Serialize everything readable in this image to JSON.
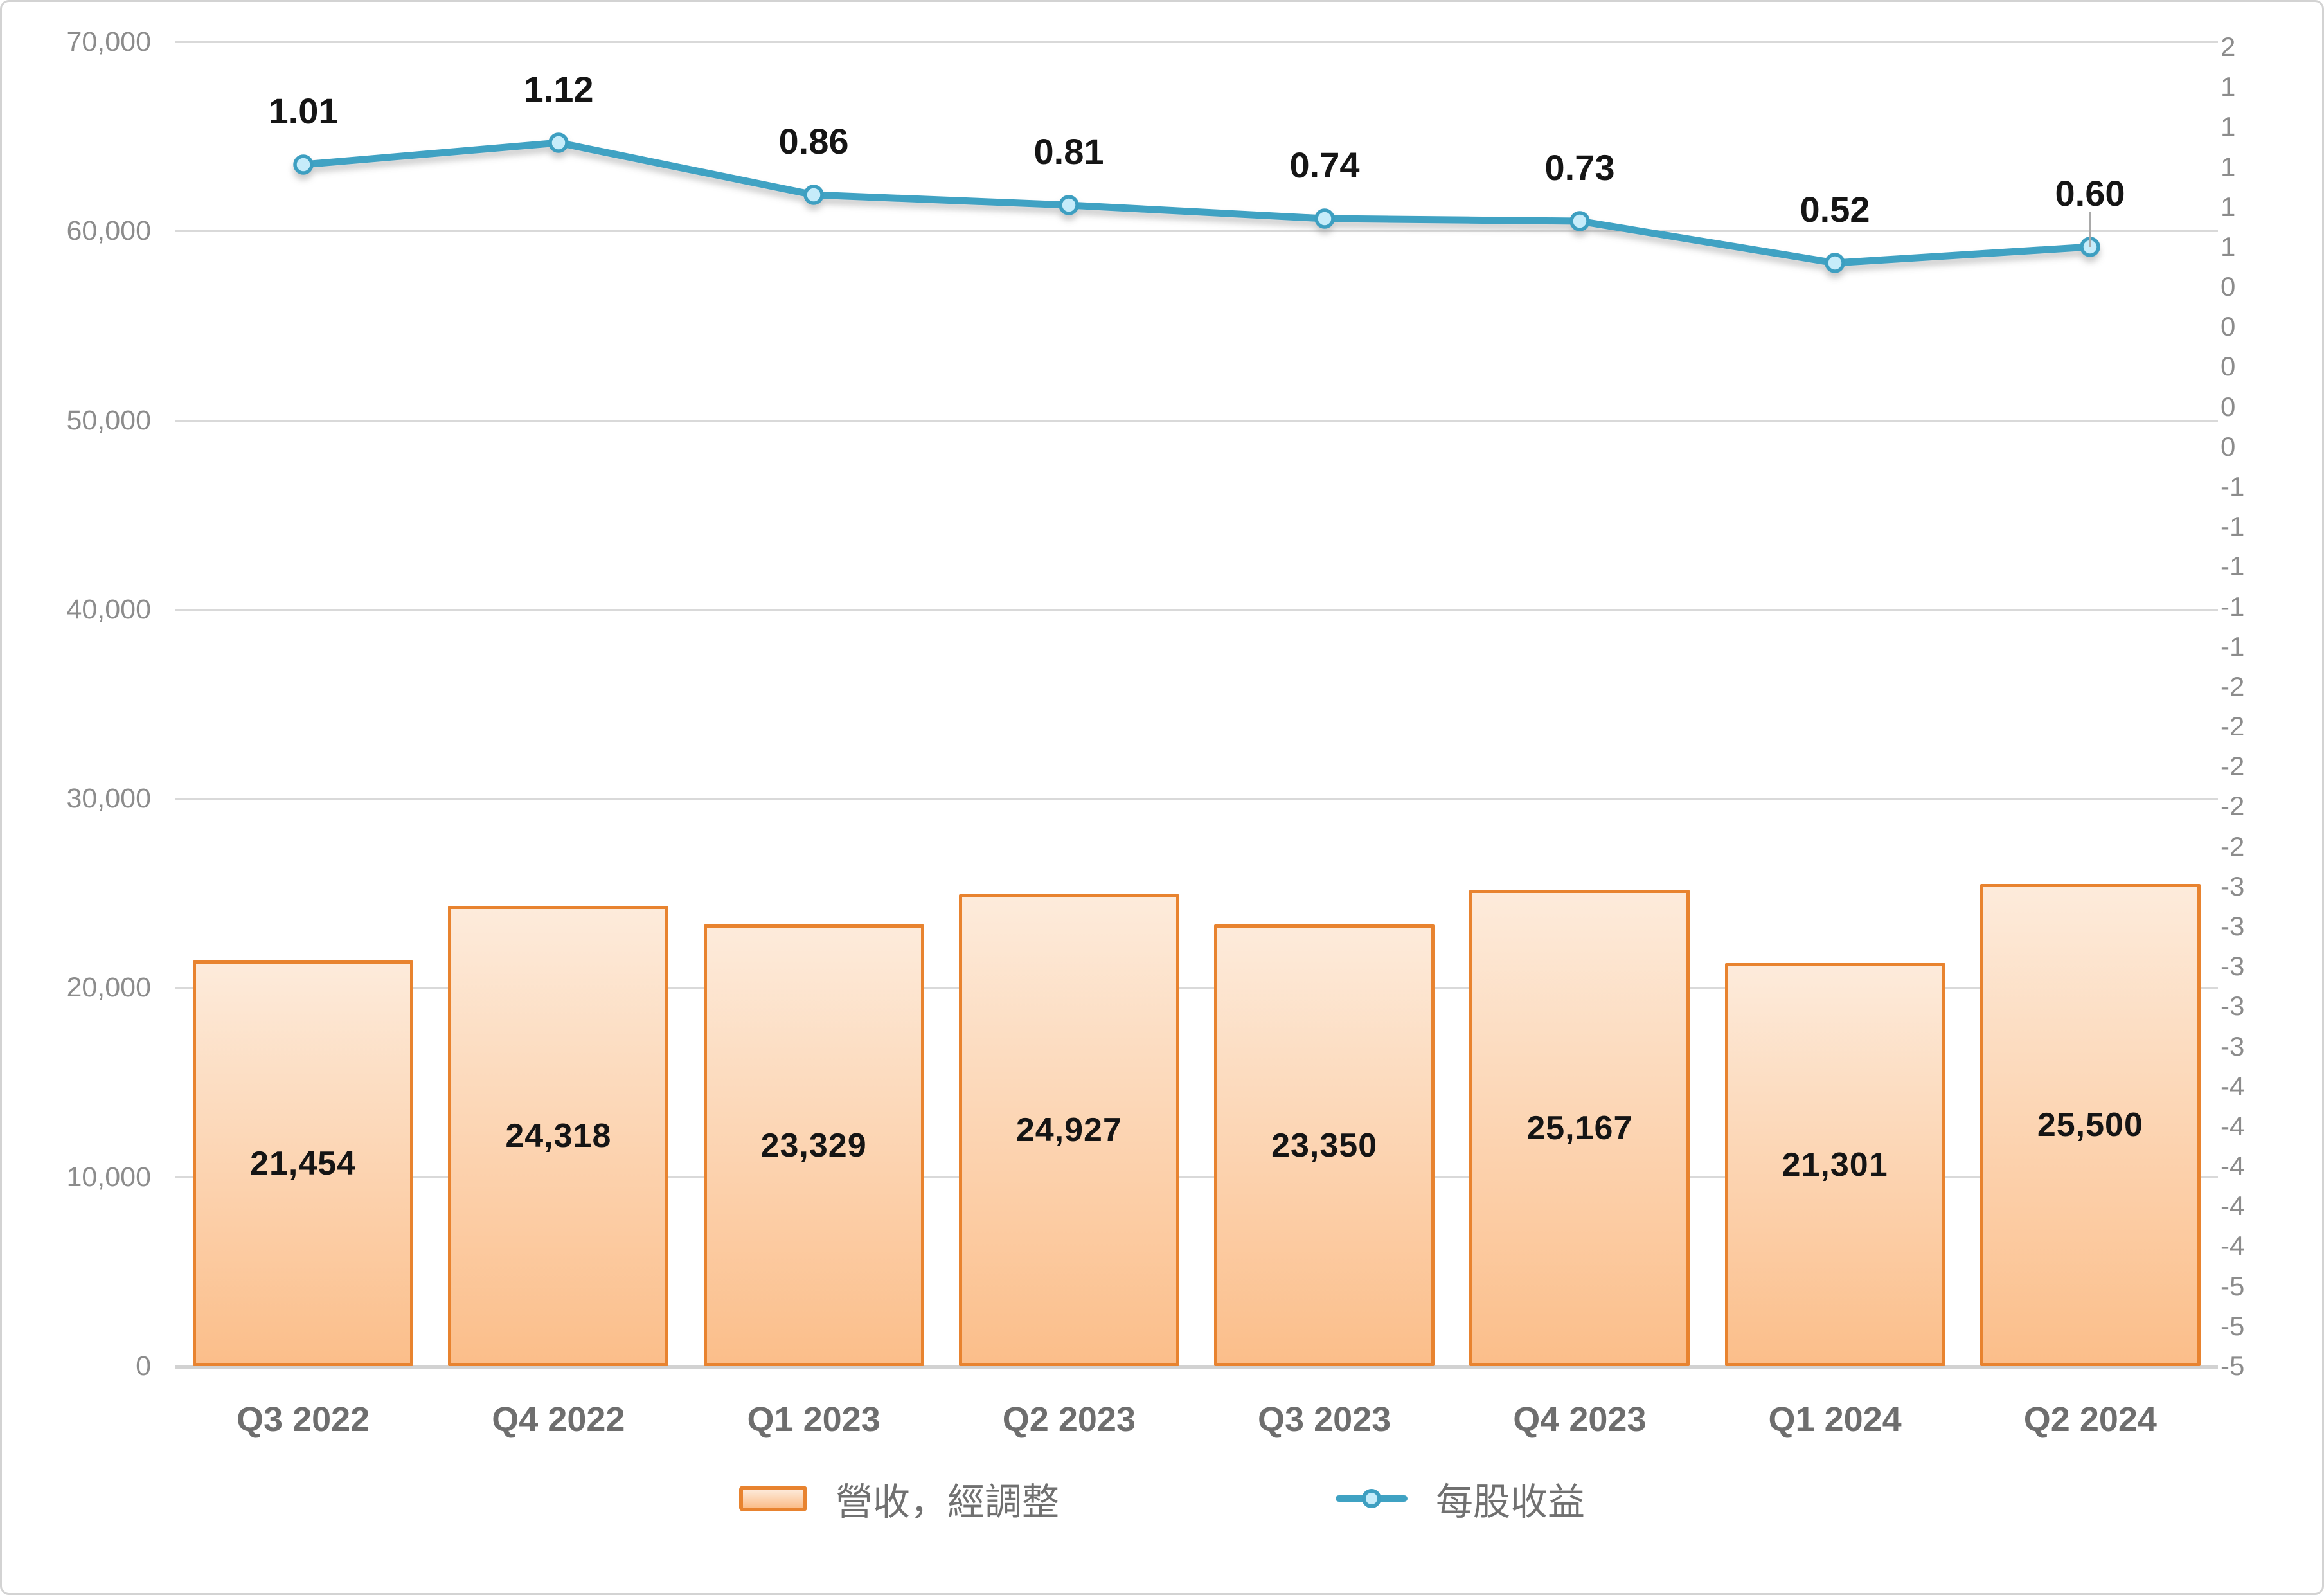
{
  "chart_data": {
    "type": "combo",
    "categories": [
      "Q3 2022",
      "Q4 2022",
      "Q1 2023",
      "Q2 2023",
      "Q3 2023",
      "Q4 2023",
      "Q1 2024",
      "Q2 2024"
    ],
    "series": [
      {
        "name": "營收，經調整",
        "type": "bar",
        "axis": "left",
        "values": [
          21454,
          24318,
          23329,
          24927,
          23350,
          25167,
          21301,
          25500
        ],
        "labels": [
          "21,454",
          "24,318",
          "23,329",
          "24,927",
          "23,350",
          "25,167",
          "21,301",
          "25,500"
        ]
      },
      {
        "name": "每股收益",
        "type": "line",
        "axis": "right",
        "values": [
          1.01,
          1.12,
          0.86,
          0.81,
          0.74,
          0.73,
          0.52,
          0.6
        ],
        "labels": [
          "1.01",
          "1.12",
          "0.86",
          "0.81",
          "0.74",
          "0.73",
          "0.52",
          "0.60"
        ]
      }
    ],
    "left_axis": {
      "min": 0,
      "max": 70000,
      "step": 10000,
      "tick_labels": [
        "70,000",
        "60,000",
        "50,000",
        "40,000",
        "30,000",
        "20,000",
        "10,000",
        "0"
      ]
    },
    "right_axis": {
      "min": -5.0,
      "max": 1.6,
      "step": 0.2,
      "tick_labels": [
        "2",
        "1",
        "1",
        "1",
        "1",
        "1",
        "0",
        "0",
        "0",
        "0",
        "0",
        "-1",
        "-1",
        "-1",
        "-1",
        "-1",
        "-2",
        "-2",
        "-2",
        "-2",
        "-2",
        "-3",
        "-3",
        "-3",
        "-3",
        "-3",
        "-4",
        "-4",
        "-4",
        "-4",
        "-4",
        "-5",
        "-5",
        "-5"
      ]
    },
    "grid": true,
    "legend_position": "bottom",
    "annotations": {
      "last_point_error_tick": true
    }
  },
  "legend": {
    "items": [
      {
        "label": "營收，經調整",
        "swatch": "bar"
      },
      {
        "label": "每股收益",
        "swatch": "line-marker"
      }
    ]
  },
  "colors": {
    "bar_fill_top": "#FDEBDB",
    "bar_fill_bottom": "#FBBE8A",
    "bar_border": "#E8832F",
    "line": "#3FA2C3",
    "marker_fill": "#C6ECFA",
    "marker_border": "#3E9FC1",
    "grid": "#D9D9D9",
    "axis_line": "#D2D2D2",
    "axis_text": "#8C8C8C",
    "xlabel_text": "#6E6E6E",
    "data_label": "#151515",
    "legend_text": "#707070",
    "error_tick": "#A9A9A9"
  }
}
